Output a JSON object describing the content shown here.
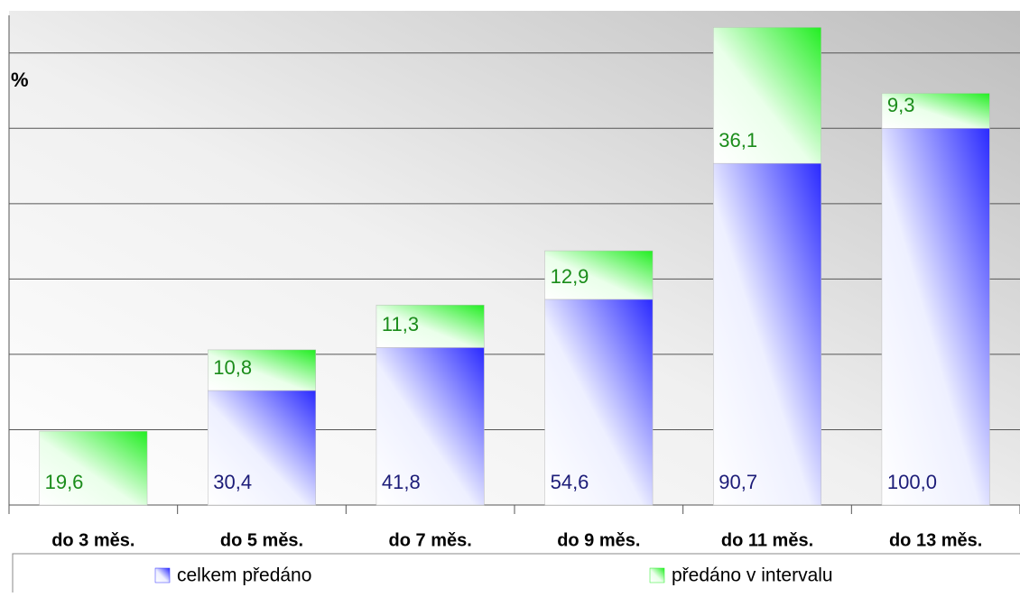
{
  "chart_data": {
    "type": "stacked-bar",
    "y_label": "%",
    "categories": [
      "do 3 měs.",
      "do 5 měs.",
      "do 7 měs.",
      "do 9 měs.",
      "do 11 měs.",
      "do 13 měs."
    ],
    "series": [
      {
        "name": "celkem předáno",
        "color": "#2a2aff",
        "text_color": "#1c1c78",
        "values": [
          null,
          30.4,
          41.8,
          54.6,
          90.7,
          100.0
        ],
        "value_labels": [
          null,
          "30,4",
          "41,8",
          "54,6",
          "90,7",
          "100,0"
        ]
      },
      {
        "name": "předáno v intervalu",
        "color": "#22ee22",
        "text_color": "#1a8c1a",
        "values": [
          19.6,
          10.8,
          11.3,
          12.9,
          36.1,
          9.3
        ],
        "value_labels": [
          "19,6",
          "10,8",
          "11,3",
          "12,9",
          "36,1",
          "9,3"
        ]
      }
    ],
    "ylim": [
      0,
      130
    ],
    "yticks": [
      0,
      20,
      40,
      60,
      80,
      100,
      120
    ],
    "grid": true
  }
}
